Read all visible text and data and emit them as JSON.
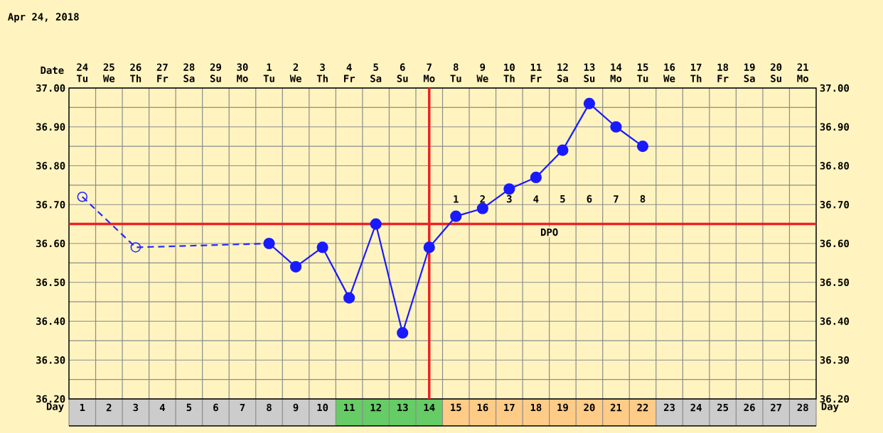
{
  "chart_data": {
    "type": "line",
    "title": "Apr 24, 2018",
    "xlabel": "Day",
    "x2label": "Date",
    "xlim": [
      0.5,
      28.5
    ],
    "ylim": [
      36.2,
      37.0
    ],
    "xticks": [
      1,
      2,
      3,
      4,
      5,
      6,
      7,
      8,
      9,
      10,
      11,
      12,
      13,
      14,
      15,
      16,
      17,
      18,
      19,
      20,
      21,
      22,
      23,
      24,
      25,
      26,
      27,
      28
    ],
    "x2lim": [
      "2018-04-23T12:00",
      "2018-05-21T12:00"
    ],
    "x2ticks": [
      {
        "value": "2018-04-24",
        "label": "24 Tu"
      },
      {
        "value": "2018-04-25",
        "label": "25 We"
      },
      {
        "value": "2018-04-26",
        "label": "26 Th"
      },
      {
        "value": "2018-04-27",
        "label": "27 Fr"
      },
      {
        "value": "2018-04-28",
        "label": "28 Sa"
      },
      {
        "value": "2018-04-29",
        "label": "29 Su"
      },
      {
        "value": "2018-04-30",
        "label": "30 Mo"
      },
      {
        "value": "2018-05-01",
        "label": "1 Tu"
      },
      {
        "value": "2018-05-02",
        "label": "2 We"
      },
      {
        "value": "2018-05-03",
        "label": "3 Th"
      },
      {
        "value": "2018-05-04",
        "label": "4 Fr"
      },
      {
        "value": "2018-05-05",
        "label": "5 Sa"
      },
      {
        "value": "2018-05-06",
        "label": "6 Su"
      },
      {
        "value": "2018-05-07",
        "label": "7 Mo"
      },
      {
        "value": "2018-05-08",
        "label": "8 Tu"
      },
      {
        "value": "2018-05-09",
        "label": "9 We"
      },
      {
        "value": "2018-05-10",
        "label": "10 Th"
      },
      {
        "value": "2018-05-11",
        "label": "11 Fr"
      },
      {
        "value": "2018-05-12",
        "label": "12 Sa"
      },
      {
        "value": "2018-05-13",
        "label": "13 Su"
      },
      {
        "value": "2018-05-14",
        "label": "14 Mo"
      },
      {
        "value": "2018-05-15",
        "label": "15 Tu"
      },
      {
        "value": "2018-05-16",
        "label": "16 We"
      },
      {
        "value": "2018-05-17",
        "label": "17 Th"
      },
      {
        "value": "2018-05-18",
        "label": "18 Fr"
      },
      {
        "value": "2018-05-19",
        "label": "19 Sa"
      },
      {
        "value": "2018-05-20",
        "label": "20 Su"
      },
      {
        "value": "2018-05-21",
        "label": "21 Mo"
      }
    ],
    "yticks": [
      {
        "value": 36.2,
        "label": "36.20"
      },
      {
        "value": 36.3,
        "label": "36.30"
      },
      {
        "value": 36.4,
        "label": "36.40"
      },
      {
        "value": 36.5,
        "label": "36.50"
      },
      {
        "value": 36.6,
        "label": "36.60"
      },
      {
        "value": 36.7,
        "label": "36.70"
      },
      {
        "value": 36.8,
        "label": "36.80"
      },
      {
        "value": 36.9,
        "label": "36.90"
      },
      {
        "value": 37.0,
        "label": "37.00"
      }
    ],
    "y2lim": [
      36.2,
      37.0
    ],
    "y2ticks": [
      {
        "value": 36.2,
        "label": "36.20"
      },
      {
        "value": 36.3,
        "label": "36.30"
      },
      {
        "value": 36.4,
        "label": "36.40"
      },
      {
        "value": 36.5,
        "label": "36.50"
      },
      {
        "value": 36.6,
        "label": "36.60"
      },
      {
        "value": 36.7,
        "label": "36.70"
      },
      {
        "value": 36.8,
        "label": "36.80"
      },
      {
        "value": 36.9,
        "label": "36.90"
      },
      {
        "value": 37.0,
        "label": "37.00"
      }
    ],
    "grid": true,
    "series": [
      {
        "x": [
          1,
          3,
          8
        ],
        "values": [
          36.72,
          36.59,
          36.6
        ],
        "color": "#2a2aff",
        "line_style": "dashed",
        "marker": "none"
      },
      {
        "type": "scatter",
        "x": [
          1,
          3
        ],
        "values": [
          36.72,
          36.59
        ],
        "color": "#2a2aff",
        "marker": "circle"
      },
      {
        "x": [
          8,
          9,
          10,
          11,
          12,
          13,
          14,
          15,
          16,
          17,
          18,
          19,
          20,
          21,
          22
        ],
        "values": [
          36.6,
          36.54,
          36.59,
          36.46,
          36.65,
          36.37,
          36.59,
          36.67,
          36.69,
          36.74,
          36.77,
          36.84,
          36.96,
          36.9,
          36.85
        ],
        "color": "#1a1aff",
        "line_style": "solid",
        "marker": "circle"
      }
    ],
    "ref_lines": [
      {
        "axis": "x",
        "value": 14,
        "color": "#ee2222"
      },
      {
        "axis": "y",
        "value": 36.65,
        "color": "#ee2222"
      }
    ],
    "annotations": [
      "1",
      "2",
      "3",
      "4",
      "5",
      "6",
      "7",
      "8",
      "DPO"
    ]
  }
}
